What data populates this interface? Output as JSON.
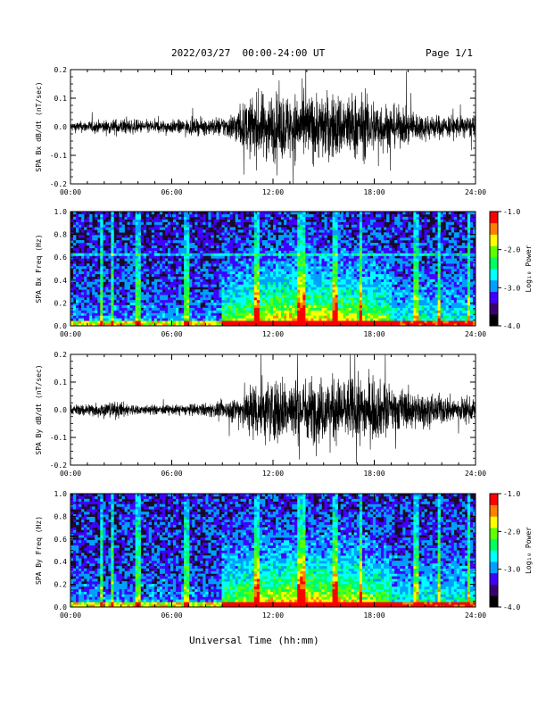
{
  "header": {
    "title": "2022/03/27  00:00-24:00 UT",
    "page": "Page 1/1"
  },
  "footer": {
    "xlabel": "Universal Time (hh:mm)"
  },
  "chart_data": [
    {
      "type": "line",
      "ylabel": "SPA Bx dB/dt (nT/sec)",
      "xlim": [
        "00:00",
        "24:00"
      ],
      "xticks": [
        "00:00",
        "06:00",
        "12:00",
        "18:00",
        "24:00"
      ],
      "ylim": [
        -0.2,
        0.2
      ],
      "yticks": [
        "-0.2",
        "-0.1",
        "0.0",
        "0.1",
        "0.2"
      ],
      "series": [
        {
          "x_hours": [
            0,
            2,
            3,
            4,
            6,
            8,
            9,
            9.5,
            10,
            11,
            12,
            13,
            14,
            15,
            16,
            17,
            18,
            19,
            20,
            21,
            22,
            23,
            24
          ],
          "envelope_amplitude": [
            0.03,
            0.04,
            0.05,
            0.04,
            0.04,
            0.05,
            0.06,
            0.08,
            0.12,
            0.2,
            0.2,
            0.2,
            0.2,
            0.2,
            0.2,
            0.2,
            0.17,
            0.13,
            0.1,
            0.08,
            0.07,
            0.07,
            0.06
          ]
        }
      ]
    },
    {
      "type": "heatmap",
      "ylabel": "SPA Bx Freq (Hz)",
      "xlim": [
        "00:00",
        "24:00"
      ],
      "xticks": [
        "00:00",
        "06:00",
        "12:00",
        "18:00",
        "24:00"
      ],
      "ylim": [
        0.0,
        1.0
      ],
      "yticks": [
        "0.0",
        "0.2",
        "0.4",
        "0.6",
        "0.8",
        "1.0"
      ],
      "colorbar": {
        "label": "Log₁₀ Power",
        "range": [
          -4.0,
          -1.0
        ],
        "ticks": [
          "-1.0",
          "-2.0",
          "-3.0",
          "-4.0"
        ]
      }
    },
    {
      "type": "line",
      "ylabel": "SPA By dB/dt (nT/sec)",
      "xlim": [
        "00:00",
        "24:00"
      ],
      "xticks": [
        "00:00",
        "06:00",
        "12:00",
        "18:00",
        "24:00"
      ],
      "ylim": [
        -0.2,
        0.2
      ],
      "yticks": [
        "-0.2",
        "-0.1",
        "0.0",
        "0.1",
        "0.2"
      ],
      "series": [
        {
          "x_hours": [
            0,
            2,
            3,
            4,
            6,
            8,
            9,
            9.5,
            10,
            11,
            12,
            13,
            14,
            15,
            16,
            17,
            18,
            19,
            20,
            21,
            22,
            23,
            24
          ],
          "envelope_amplitude": [
            0.03,
            0.05,
            0.05,
            0.03,
            0.03,
            0.04,
            0.05,
            0.07,
            0.1,
            0.2,
            0.2,
            0.2,
            0.2,
            0.2,
            0.2,
            0.2,
            0.19,
            0.15,
            0.12,
            0.1,
            0.09,
            0.08,
            0.07
          ]
        }
      ]
    },
    {
      "type": "heatmap",
      "ylabel": "SPA By Freq (Hz)",
      "xlim": [
        "00:00",
        "24:00"
      ],
      "xticks": [
        "00:00",
        "06:00",
        "12:00",
        "18:00",
        "24:00"
      ],
      "ylim": [
        0.0,
        1.0
      ],
      "yticks": [
        "0.0",
        "0.2",
        "0.4",
        "0.6",
        "0.8",
        "1.0"
      ],
      "colorbar": {
        "label": "Log₁₀ Power",
        "range": [
          -4.0,
          -1.0
        ],
        "ticks": [
          "-1.0",
          "-2.0",
          "-3.0",
          "-4.0"
        ]
      }
    }
  ],
  "colors": {
    "trace": "#000000",
    "spectrogram_background": "#1a0a2a",
    "colormap": [
      "#000000",
      "#3a0070",
      "#4000ff",
      "#00a0ff",
      "#00ffff",
      "#00ff60",
      "#60ff00",
      "#ffff00",
      "#ff8000",
      "#ff0000"
    ]
  }
}
